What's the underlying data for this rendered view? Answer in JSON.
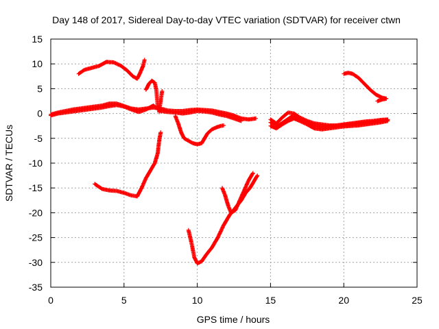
{
  "chart_data": {
    "type": "scatter",
    "title": "Day 148 of 2017, Sidereal Day-to-day VTEC variation (SDTVAR) for receiver ctwn",
    "xlabel": "GPS time / hours",
    "ylabel": "SDTVAR / TECUs",
    "xlim": [
      0,
      25
    ],
    "ylim": [
      -35,
      15
    ],
    "xticks": [
      "0",
      "5",
      "10",
      "15",
      "20",
      "25"
    ],
    "yticks": [
      "15",
      "10",
      "5",
      "0",
      "-5",
      "-10",
      "-15",
      "-20",
      "-25",
      "-30",
      "-35"
    ],
    "xtick_values": [
      0,
      5,
      10,
      15,
      20,
      25
    ],
    "ytick_values": [
      15,
      10,
      5,
      0,
      -5,
      -10,
      -15,
      -20,
      -25,
      -30,
      -35
    ],
    "grid": true,
    "marker": "+",
    "color": "#ff0000",
    "series": [
      {
        "x": [
          0.0,
          0.5,
          1.0,
          1.5,
          2.0,
          2.5,
          3.0,
          3.5,
          4.0,
          4.5,
          5.0,
          5.5,
          6.0,
          6.5,
          7.0,
          7.5,
          8.0,
          8.5,
          9.0,
          9.5,
          10.0,
          10.5,
          11.0,
          11.5,
          12.0,
          12.5,
          13.0,
          13.5,
          14.0
        ],
        "y": [
          -0.2,
          0.2,
          0.5,
          0.8,
          1.0,
          1.2,
          1.4,
          1.6,
          2.0,
          2.0,
          1.5,
          1.0,
          0.8,
          1.0,
          1.2,
          1.0,
          0.6,
          0.5,
          0.5,
          0.7,
          0.8,
          0.7,
          0.6,
          0.3,
          0.0,
          -0.4,
          -1.0,
          -1.2,
          -1.0
        ]
      },
      {
        "x": [
          0.0,
          0.5,
          1.0,
          1.5,
          2.0,
          2.5,
          3.0,
          3.5,
          4.0,
          4.5,
          5.0,
          5.5,
          6.0,
          6.5,
          7.0,
          7.5,
          8.0,
          8.5,
          9.0,
          9.5,
          10.0,
          10.5,
          11.0,
          11.5,
          12.0,
          12.5,
          13.0
        ],
        "y": [
          -0.4,
          0.0,
          0.2,
          0.4,
          0.6,
          0.8,
          1.0,
          1.2,
          1.5,
          1.7,
          1.4,
          0.8,
          0.3,
          0.8,
          1.6,
          0.5,
          0.3,
          0.2,
          0.0,
          0.2,
          0.5,
          0.4,
          0.2,
          -0.2,
          -0.5,
          -1.0,
          -1.5
        ]
      },
      {
        "x": [
          1.9,
          2.3,
          2.8,
          3.3,
          3.8,
          4.3,
          4.8,
          5.2,
          5.6,
          5.9,
          6.1,
          6.3,
          6.4
        ],
        "y": [
          8.0,
          8.8,
          9.2,
          9.6,
          10.4,
          10.3,
          9.6,
          8.7,
          7.5,
          7.0,
          8.2,
          9.6,
          10.8
        ]
      },
      {
        "x": [
          6.5,
          6.7,
          6.9,
          7.1,
          7.2,
          7.3
        ],
        "y": [
          4.8,
          6.0,
          6.6,
          6.2,
          4.8,
          1.5
        ]
      },
      {
        "x": [
          7.4,
          7.5,
          7.6
        ],
        "y": [
          0.3,
          2.5,
          4.5
        ]
      },
      {
        "x": [
          3.0,
          3.5,
          4.0,
          4.5,
          5.0,
          5.5,
          5.9,
          6.2,
          6.5,
          6.8,
          7.1,
          7.3,
          7.4,
          7.5
        ],
        "y": [
          -14.2,
          -15.2,
          -15.5,
          -15.6,
          -16.0,
          -16.5,
          -16.7,
          -15.0,
          -13.0,
          -11.5,
          -10.0,
          -8.0,
          -5.5,
          -3.8
        ]
      },
      {
        "x": [
          8.5,
          8.7,
          8.9,
          9.1,
          9.4,
          9.7,
          10.0,
          10.3,
          10.5,
          10.7,
          11.0,
          11.3,
          11.6,
          11.8
        ],
        "y": [
          -0.5,
          -2.0,
          -3.8,
          -5.0,
          -5.5,
          -6.0,
          -6.2,
          -6.0,
          -5.0,
          -4.0,
          -3.2,
          -2.8,
          -2.5,
          -2.4
        ]
      },
      {
        "x": [
          9.4,
          9.6,
          9.8,
          10.0,
          10.3,
          10.6,
          11.0,
          11.4,
          11.8,
          12.2,
          12.6,
          13.0,
          13.3,
          13.6,
          13.9,
          14.1
        ],
        "y": [
          -23.5,
          -26.0,
          -29.0,
          -30.2,
          -29.8,
          -28.5,
          -27.0,
          -25.0,
          -22.5,
          -20.5,
          -19.0,
          -17.5,
          -16.0,
          -15.0,
          -13.5,
          -12.5
        ]
      },
      {
        "x": [
          11.7,
          11.9,
          12.1,
          12.3,
          12.6,
          12.9,
          13.2,
          13.5,
          13.8
        ],
        "y": [
          -15.0,
          -16.5,
          -18.5,
          -20.0,
          -19.5,
          -17.5,
          -15.5,
          -13.5,
          -12.0
        ]
      },
      {
        "x": [
          15.0,
          15.4,
          15.8,
          16.2,
          16.6,
          17.0,
          17.5,
          18.0,
          18.5,
          19.0,
          19.5,
          20.0,
          20.5,
          21.0,
          21.5,
          22.0,
          22.5,
          23.0
        ],
        "y": [
          -1.2,
          -2.0,
          -0.8,
          0.2,
          0.0,
          -0.8,
          -1.5,
          -2.0,
          -2.2,
          -2.4,
          -2.4,
          -2.2,
          -2.0,
          -1.8,
          -1.6,
          -1.5,
          -1.3,
          -1.2
        ]
      },
      {
        "x": [
          15.0,
          15.4,
          15.8,
          16.2,
          16.6,
          17.0,
          17.5,
          18.0,
          18.5,
          19.0,
          19.5,
          20.0,
          20.5,
          21.0,
          21.5,
          22.0,
          22.5,
          23.0
        ],
        "y": [
          -2.5,
          -3.0,
          -2.2,
          -1.5,
          -1.0,
          -1.5,
          -2.2,
          -3.0,
          -3.2,
          -3.0,
          -2.8,
          -2.6,
          -2.5,
          -2.4,
          -2.2,
          -2.0,
          -1.8,
          -1.5
        ]
      },
      {
        "x": [
          15.0,
          15.5,
          16.0,
          16.5,
          17.0,
          17.5,
          18.0,
          18.5,
          19.0,
          19.5,
          20.0,
          20.5,
          21.0,
          21.5,
          22.0,
          22.5,
          23.0
        ],
        "y": [
          -1.8,
          -2.5,
          -1.5,
          -0.5,
          -1.0,
          -1.8,
          -2.5,
          -2.7,
          -2.6,
          -2.5,
          -2.3,
          -2.2,
          -2.0,
          -1.9,
          -1.7,
          -1.5,
          -1.3
        ]
      },
      {
        "x": [
          20.0,
          20.3,
          20.6,
          21.0,
          21.4,
          21.8,
          22.2,
          22.6,
          22.9
        ],
        "y": [
          8.0,
          8.2,
          8.0,
          7.2,
          6.0,
          4.8,
          3.8,
          3.2,
          3.0
        ]
      },
      {
        "x": [
          22.3,
          22.6,
          22.9
        ],
        "y": [
          2.5,
          2.8,
          3.0
        ]
      }
    ]
  }
}
